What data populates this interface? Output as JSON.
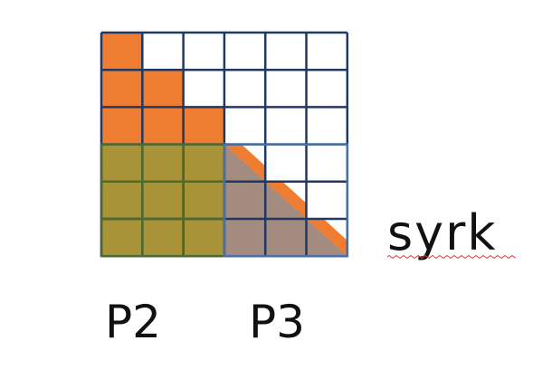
{
  "labels": {
    "p2": "P2",
    "p3": "P3",
    "syrk": "syrk"
  },
  "grid": {
    "rows": 6,
    "cols": 6
  },
  "colors": {
    "orange": "#EF7D31",
    "olive": "#A89338",
    "mauve": "#A38B80",
    "white": "#FFFFFF",
    "grid_line": "#1F3864",
    "green_line": "#4E6B2F",
    "blue_line": "#4B6FA5",
    "spell_underline": "#E53935"
  }
}
